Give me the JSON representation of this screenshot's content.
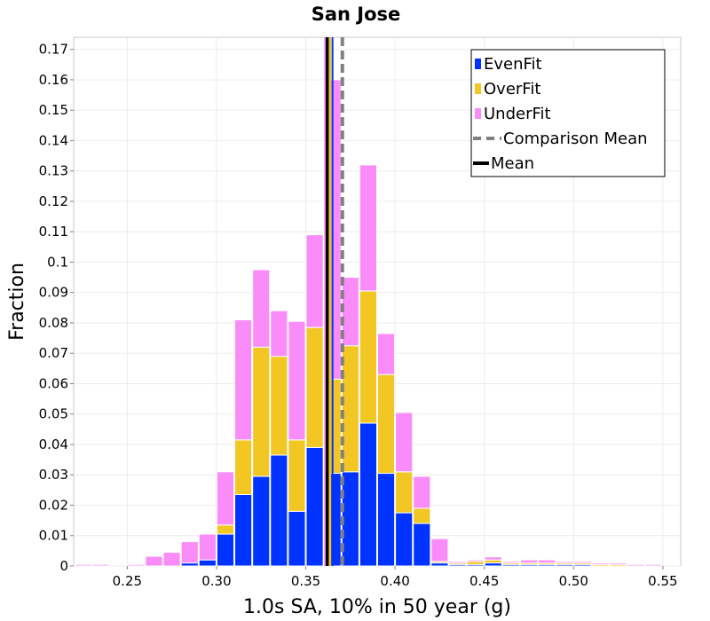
{
  "chart_data": {
    "type": "bar",
    "stacked": true,
    "title": "San Jose",
    "xlabel": "1.0s SA, 10% in 50 year (g)",
    "ylabel": "Fraction",
    "xlim": [
      0.22,
      0.56
    ],
    "ylim": [
      0,
      0.174
    ],
    "bin_width": 0.01,
    "x_ticks": [
      0.25,
      0.3,
      0.35,
      0.4,
      0.45,
      0.5,
      0.55
    ],
    "x_tick_labels": [
      "0.25",
      "0.30",
      "0.35",
      "0.40",
      "0.45",
      "0.50",
      "0.55"
    ],
    "y_ticks": [
      0,
      0.01,
      0.02,
      0.03,
      0.04,
      0.05,
      0.06,
      0.07,
      0.08,
      0.09,
      0.1,
      0.11,
      0.12,
      0.13,
      0.14,
      0.15,
      0.16,
      0.17
    ],
    "y_tick_labels": [
      "0",
      "0.01",
      "0.02",
      "0.03",
      "0.04",
      "0.05",
      "0.06",
      "0.07",
      "0.08",
      "0.09",
      "0.1",
      "0.11",
      "0.12",
      "0.13",
      "0.14",
      "0.15",
      "0.16",
      "0.17"
    ],
    "bin_starts": [
      0.22,
      0.23,
      0.24,
      0.25,
      0.26,
      0.27,
      0.28,
      0.29,
      0.3,
      0.31,
      0.32,
      0.33,
      0.34,
      0.35,
      0.36,
      0.37,
      0.38,
      0.39,
      0.4,
      0.41,
      0.42,
      0.43,
      0.44,
      0.45,
      0.46,
      0.47,
      0.48,
      0.49,
      0.5,
      0.51,
      0.52,
      0.53,
      0.54,
      0.55
    ],
    "series": [
      {
        "name": "EvenFit",
        "color": "#0033ff",
        "values": [
          0,
          0,
          0,
          0,
          0,
          0,
          0.001,
          0.002,
          0.0105,
          0.0235,
          0.0295,
          0.0365,
          0.018,
          0.039,
          0.0305,
          0.031,
          0.047,
          0.0305,
          0.0175,
          0.014,
          0.001,
          0.0005,
          0.0005,
          0.001,
          0.0005,
          0.0005,
          0.0005,
          0.0005,
          0.0005,
          0,
          0,
          0,
          0,
          0
        ]
      },
      {
        "name": "OverFit",
        "color": "#f2c623",
        "values": [
          0,
          0,
          0,
          0,
          0,
          0,
          0,
          0,
          0.003,
          0.018,
          0.0425,
          0.0325,
          0.0235,
          0.0395,
          0.031,
          0.0415,
          0.0435,
          0.0325,
          0.0135,
          0.005,
          0.0005,
          0.0005,
          0.001,
          0.001,
          0.0005,
          0.0005,
          0.0005,
          0.0005,
          0.0005,
          0.0005,
          0.0005,
          0,
          0,
          0
        ]
      },
      {
        "name": "UnderFit",
        "color": "#fa8cfa",
        "values": [
          0.0005,
          0.0005,
          0,
          0.0005,
          0.0032,
          0.0045,
          0.007,
          0.0085,
          0.0175,
          0.0395,
          0.0255,
          0.015,
          0.039,
          0.0305,
          0.0985,
          0.0225,
          0.0415,
          0.0135,
          0.0195,
          0.0105,
          0.0075,
          0.0005,
          0.0005,
          0.001,
          0.0005,
          0.001,
          0.001,
          0.0005,
          0.0005,
          0.0005,
          0.0005,
          0.0005,
          0.0005,
          0
        ]
      }
    ],
    "lines": [
      {
        "name": "Comparison Mean",
        "x": 0.3705,
        "color": "#808080",
        "style": "dashed"
      },
      {
        "name": "Mean",
        "x": 0.362,
        "color": "#000000",
        "style": "solid"
      }
    ],
    "mean_band_colors": [
      "#0033ff",
      "#f2c623",
      "#000000"
    ],
    "legend": {
      "placement": "top-right",
      "entries": [
        {
          "label": "EvenFit",
          "kind": "patch",
          "color": "#0033ff"
        },
        {
          "label": "OverFit",
          "kind": "patch",
          "color": "#f2c623"
        },
        {
          "label": "UnderFit",
          "kind": "patch",
          "color": "#fa8cfa"
        },
        {
          "label": "Comparison Mean",
          "kind": "dashed-line",
          "color": "#808080"
        },
        {
          "label": "Mean",
          "kind": "solid-line",
          "color": "#000000"
        }
      ]
    }
  }
}
